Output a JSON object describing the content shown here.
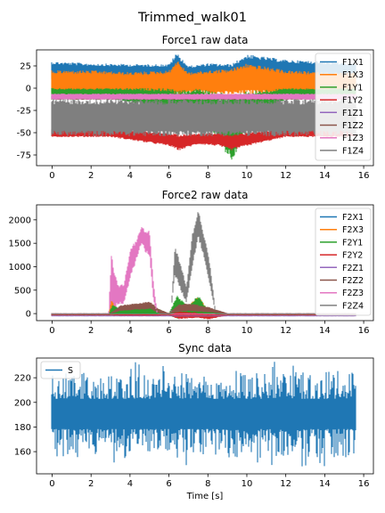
{
  "figure": {
    "suptitle": "Trimmed_walk01"
  },
  "chart_data": [
    {
      "type": "line",
      "title": "Force1 raw data",
      "xlabel": "",
      "ylabel": "",
      "xlim": [
        -0.8,
        16.5
      ],
      "ylim": [
        -87,
        43
      ],
      "xticks": [
        0,
        2,
        4,
        6,
        8,
        10,
        12,
        14,
        16
      ],
      "yticks": [
        25,
        0,
        -25,
        -50,
        -75
      ],
      "legend": "top-right",
      "series": [
        {
          "name": "F1X1",
          "color": "#1f77b4",
          "x": [
            0,
            2,
            4,
            6,
            6.4,
            7,
            8,
            9.2,
            10,
            12,
            14,
            15.6
          ],
          "lower": [
            8,
            8,
            8,
            7,
            5,
            7,
            6,
            4,
            6,
            8,
            8,
            8
          ],
          "upper": [
            30,
            28,
            27,
            27,
            40,
            25,
            28,
            27,
            38,
            32,
            30,
            28
          ]
        },
        {
          "name": "F1X3",
          "color": "#ff7f0e",
          "x": [
            0,
            2,
            4,
            6,
            6.4,
            7,
            8,
            9.2,
            10,
            12,
            14,
            15.6
          ],
          "lower": [
            -6,
            -6,
            -6,
            -7,
            -8,
            -6,
            -6,
            -8,
            -7,
            -6,
            -6,
            -6
          ],
          "upper": [
            20,
            20,
            18,
            20,
            32,
            18,
            20,
            22,
            28,
            20,
            18,
            18
          ]
        },
        {
          "name": "F1Y1",
          "color": "#2ca02c",
          "x": [
            0,
            3,
            4.5,
            6,
            6.5,
            7.5,
            8.5,
            9.2,
            10,
            12,
            15.6
          ],
          "lower": [
            -12,
            -12,
            -18,
            -25,
            -35,
            -30,
            -60,
            -82,
            -50,
            -12,
            -12
          ],
          "upper": [
            0,
            0,
            0,
            0,
            -3,
            0,
            -5,
            -5,
            -3,
            0,
            0
          ]
        },
        {
          "name": "F1Y2",
          "color": "#d62728",
          "x": [
            0,
            3,
            4.5,
            6,
            6.5,
            7.5,
            8.5,
            9.2,
            10,
            12,
            15.6
          ],
          "lower": [
            -55,
            -55,
            -60,
            -65,
            -70,
            -63,
            -65,
            -70,
            -65,
            -55,
            -55
          ],
          "upper": [
            -45,
            -45,
            -48,
            -50,
            -52,
            -50,
            -50,
            -52,
            -50,
            -45,
            -45
          ]
        },
        {
          "name": "F1Z1",
          "color": "#9467bd",
          "x": [
            0,
            4,
            8,
            12,
            15.6
          ],
          "lower": [
            -12,
            -12,
            -12,
            -12,
            -12
          ],
          "upper": [
            -8,
            -8,
            -8,
            -8,
            -8
          ]
        },
        {
          "name": "F1Z2",
          "color": "#8c564b",
          "x": [
            0,
            4,
            8,
            12,
            15.6
          ],
          "lower": [
            -13,
            -13,
            -13,
            -13,
            -13
          ],
          "upper": [
            -9,
            -9,
            -9,
            -9,
            -9
          ]
        },
        {
          "name": "F1Z3",
          "color": "#e377c2",
          "x": [
            0,
            4,
            8,
            12,
            15.6
          ],
          "lower": [
            -13,
            -13,
            -13,
            -13,
            -13
          ],
          "upper": [
            -6,
            -6,
            -6,
            -6,
            -6
          ]
        },
        {
          "name": "F1Z4",
          "color": "#7f7f7f",
          "x": [
            0,
            4,
            8,
            12,
            15.6
          ],
          "lower": [
            -54,
            -54,
            -54,
            -54,
            -54
          ],
          "upper": [
            -12,
            -12,
            -12,
            -12,
            -12
          ]
        }
      ]
    },
    {
      "type": "line",
      "title": "Force2 raw data",
      "xlabel": "",
      "ylabel": "",
      "xlim": [
        -0.8,
        16.5
      ],
      "ylim": [
        -150,
        2320
      ],
      "xticks": [
        0,
        2,
        4,
        6,
        8,
        10,
        12,
        14,
        16
      ],
      "yticks": [
        2000,
        1500,
        1000,
        500,
        0
      ],
      "legend": "top-right",
      "series": [
        {
          "name": "F2X1",
          "color": "#1f77b4",
          "x": [
            0,
            15.6
          ],
          "lower": [
            -40,
            -40
          ],
          "upper": [
            -20,
            -20
          ]
        },
        {
          "name": "F2X3",
          "color": "#ff7f0e",
          "x": [
            0,
            2.9,
            3.1,
            3.3,
            4,
            4.5,
            5,
            5.4,
            6,
            6.4,
            7,
            7.5,
            8,
            9,
            15.6
          ],
          "lower": [
            -30,
            -30,
            -50,
            -40,
            -30,
            -40,
            -50,
            -30,
            -30,
            -100,
            -60,
            -40,
            -100,
            -30,
            -30
          ],
          "upper": [
            -10,
            -10,
            450,
            100,
            150,
            200,
            160,
            60,
            0,
            300,
            180,
            380,
            100,
            -10,
            -10
          ]
        },
        {
          "name": "F2Y1",
          "color": "#2ca02c",
          "x": [
            0,
            2.9,
            3.1,
            3.5,
            4.5,
            5.4,
            6,
            6.4,
            7,
            7.5,
            8,
            9,
            15.6
          ],
          "lower": [
            -30,
            -30,
            -40,
            -40,
            -40,
            -40,
            -30,
            -120,
            -80,
            -60,
            -100,
            -30,
            -30
          ],
          "upper": [
            -10,
            -10,
            200,
            100,
            150,
            120,
            0,
            400,
            150,
            400,
            80,
            -10,
            -10
          ]
        },
        {
          "name": "F2Y2",
          "color": "#d62728",
          "x": [
            0,
            3,
            4.5,
            6,
            6.5,
            7.5,
            8,
            9,
            15.6
          ],
          "lower": [
            -40,
            -40,
            -60,
            -40,
            -120,
            -90,
            -130,
            -40,
            -40
          ],
          "upper": [
            -20,
            -20,
            0,
            -20,
            50,
            20,
            0,
            -20,
            -20
          ]
        },
        {
          "name": "F2Z1",
          "color": "#9467bd",
          "x": [
            0,
            15.6
          ],
          "lower": [
            -60,
            -60
          ],
          "upper": [
            -40,
            -40
          ]
        },
        {
          "name": "F2Z2",
          "color": "#8c564b",
          "x": [
            0,
            3,
            3.5,
            4.5,
            5,
            5.5,
            6,
            6.5,
            7,
            8,
            9,
            15.6
          ],
          "lower": [
            -10,
            -10,
            50,
            80,
            100,
            0,
            -10,
            30,
            50,
            20,
            -10,
            -10
          ],
          "upper": [
            10,
            10,
            180,
            230,
            260,
            100,
            10,
            200,
            220,
            150,
            10,
            10
          ]
        },
        {
          "name": "F2Z3",
          "color": "#e377c2",
          "x": [
            0,
            2.9,
            3.05,
            3.2,
            3.4,
            3.7,
            4,
            4.3,
            4.6,
            4.8,
            5,
            5.2,
            5.4,
            15.6
          ],
          "lower": [
            -20,
            -20,
            200,
            50,
            200,
            200,
            700,
            1100,
            1500,
            1300,
            1200,
            300,
            -20,
            -20
          ],
          "upper": [
            0,
            0,
            1380,
            900,
            600,
            650,
            1400,
            1550,
            1880,
            1750,
            1800,
            700,
            0,
            0
          ]
        },
        {
          "name": "F2Z4",
          "color": "#7f7f7f",
          "x": [
            0,
            6.1,
            6.3,
            6.6,
            6.9,
            7.2,
            7.5,
            7.8,
            8.1,
            8.4,
            15.6
          ],
          "lower": [
            -20,
            -20,
            800,
            500,
            200,
            1000,
            1600,
            1200,
            600,
            -20,
            -20
          ],
          "upper": [
            0,
            0,
            1450,
            1100,
            600,
            1700,
            2230,
            1700,
            1100,
            0,
            0
          ]
        }
      ]
    },
    {
      "type": "line",
      "title": "Sync data",
      "xlabel": "Time [s]",
      "ylabel": "",
      "xlim": [
        -0.8,
        16.5
      ],
      "ylim": [
        142,
        236
      ],
      "xticks": [
        0,
        2,
        4,
        6,
        8,
        10,
        12,
        14,
        16
      ],
      "yticks": [
        220,
        200,
        180,
        160
      ],
      "legend": "top-left",
      "series": [
        {
          "name": "S",
          "color": "#1f77b4",
          "x": [
            0,
            15.6
          ],
          "lower": [
            155,
            155
          ],
          "upper": [
            225,
            225
          ],
          "center": 191,
          "extremes_max": 233,
          "extremes_min": 148
        }
      ]
    }
  ]
}
